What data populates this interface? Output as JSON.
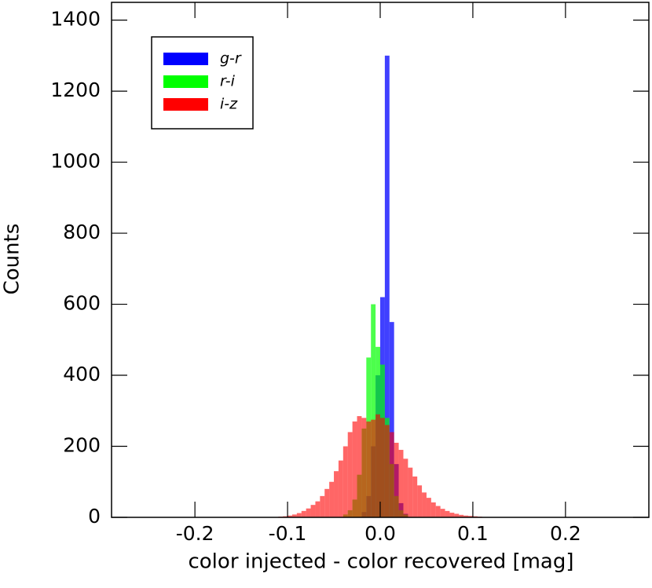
{
  "chart_data": {
    "type": "histogram",
    "xlabel": "color injected - color recovered [mag]",
    "ylabel": "Counts",
    "bins": [
      -0.12,
      -0.115,
      -0.11,
      -0.105,
      -0.1,
      -0.095,
      -0.09,
      -0.085,
      -0.08,
      -0.075,
      -0.07,
      -0.065,
      -0.06,
      -0.055,
      -0.05,
      -0.045,
      -0.04,
      -0.035,
      -0.03,
      -0.025,
      -0.02,
      -0.015,
      -0.01,
      -0.005,
      0,
      0.005,
      0.01,
      0.015,
      0.02,
      0.025,
      0.03,
      0.035,
      0.04,
      0.045,
      0.05,
      0.055,
      0.06,
      0.065,
      0.07,
      0.075,
      0.08,
      0.085,
      0.09,
      0.095,
      0.1,
      0.105,
      0.11,
      0.115,
      0.12,
      0.125,
      0.13,
      0.135,
      0.14
    ],
    "series": [
      {
        "name": "g-r",
        "color": "#0000ff",
        "values": [
          0,
          0,
          0,
          0,
          0,
          0,
          0,
          0,
          0,
          0,
          0,
          0,
          0,
          0,
          0,
          0,
          0,
          0,
          0,
          0,
          15,
          60,
          200,
          400,
          620,
          1300,
          550,
          150,
          40,
          10,
          0,
          0,
          0,
          0,
          0,
          0,
          0,
          0,
          0,
          0,
          0,
          0,
          0,
          0,
          0,
          0,
          0,
          0,
          0,
          0,
          0,
          0
        ]
      },
      {
        "name": "r-i",
        "color": "#00ff00",
        "values": [
          0,
          0,
          0,
          0,
          0,
          0,
          0,
          0,
          0,
          0,
          0,
          0,
          0,
          0,
          0,
          0,
          8,
          20,
          50,
          120,
          250,
          450,
          600,
          480,
          430,
          280,
          150,
          60,
          20,
          8,
          0,
          0,
          0,
          0,
          0,
          0,
          0,
          0,
          0,
          0,
          0,
          0,
          0,
          0,
          0,
          0,
          0,
          0,
          0,
          0,
          0,
          0
        ]
      },
      {
        "name": "i-z",
        "color": "#ff0000",
        "values": [
          0,
          1,
          2,
          3,
          5,
          8,
          12,
          18,
          25,
          35,
          45,
          60,
          80,
          100,
          130,
          160,
          200,
          240,
          270,
          285,
          280,
          270,
          275,
          290,
          280,
          260,
          240,
          210,
          190,
          165,
          140,
          115,
          90,
          70,
          55,
          42,
          32,
          24,
          18,
          13,
          10,
          7,
          5,
          4,
          3,
          2,
          1,
          1,
          0,
          0,
          0,
          0
        ]
      }
    ],
    "xlim": [
      -0.29,
      0.29
    ],
    "ylim": [
      0,
      1450
    ],
    "xticks": [
      -0.2,
      -0.1,
      {
        "value": 0,
        "label": "0.0"
      },
      0.1,
      0.2
    ],
    "yticks": [
      0,
      200,
      400,
      600,
      800,
      1000,
      1200,
      1400
    ],
    "legend": "upper left"
  }
}
